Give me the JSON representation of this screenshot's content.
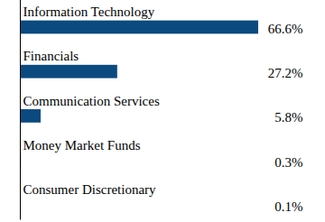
{
  "chart_data": {
    "type": "bar",
    "orientation": "horizontal",
    "categories": [
      "Information Technology",
      "Financials",
      "Communication Services",
      "Money Market Funds",
      "Consumer Discretionary"
    ],
    "values": [
      66.6,
      27.2,
      5.8,
      0.3,
      0.1
    ],
    "value_labels": [
      "66.6%",
      "27.2%",
      "5.8%",
      "0.3%",
      "0.1%"
    ],
    "data_labels": true,
    "color": "#0b4a7f",
    "tick_labels": "y"
  }
}
